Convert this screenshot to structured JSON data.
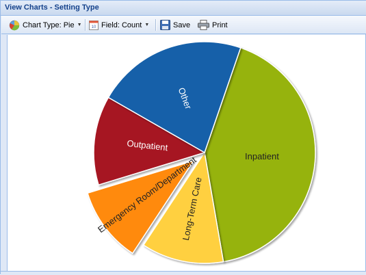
{
  "window": {
    "title": "View Charts - Setting Type"
  },
  "toolbar": {
    "chart_type": {
      "label": "Chart Type: Pie",
      "icon": "pie-chart-icon"
    },
    "field": {
      "label": "Field: Count",
      "icon": "calendar-field-icon"
    },
    "save": {
      "label": "Save",
      "icon": "floppy-disk-icon"
    },
    "print": {
      "label": "Print",
      "icon": "printer-icon"
    }
  },
  "chart_data": {
    "type": "pie",
    "title": "",
    "exploded": "Emergency Room/Department",
    "slices": [
      {
        "label": "Inpatient",
        "value": 42,
        "color": "#96b30e"
      },
      {
        "label": "Long-Term Care",
        "value": 12,
        "color": "#ffd03f"
      },
      {
        "label": "Emergency Room/Department",
        "value": 11,
        "color": "#ff8a10"
      },
      {
        "label": "Outpatient",
        "value": 13,
        "color": "#a61220"
      },
      {
        "label": "Other",
        "value": 22,
        "color": "#1360a9"
      }
    ]
  }
}
